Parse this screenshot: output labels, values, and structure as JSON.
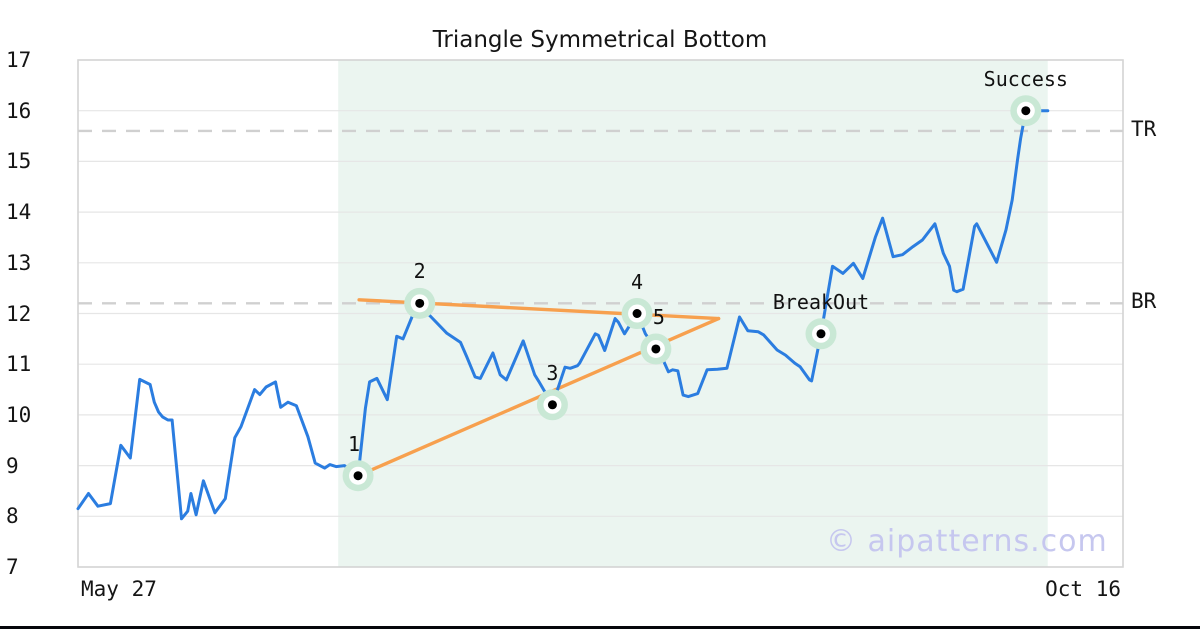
{
  "watermark": "© aipatterns.com",
  "chart_data": {
    "type": "line",
    "title": "Triangle Symmetrical Bottom",
    "xlabel": "",
    "ylabel": "",
    "x_tick_labels": [
      "May 27",
      "Oct 16"
    ],
    "y_ticks": [
      7,
      8,
      9,
      10,
      11,
      12,
      13,
      14,
      15,
      16,
      17
    ],
    "ylim": [
      7,
      17
    ],
    "grid": "horizontal",
    "legend": "none",
    "pattern_region_x_pct": [
      24.9,
      92.8
    ],
    "levels": [
      {
        "label": "TR",
        "value": 15.6
      },
      {
        "label": "BR",
        "value": 12.2
      }
    ],
    "trendlines": [
      {
        "name": "upper",
        "points": [
          [
            26.9,
            12.27
          ],
          [
            61.3,
            11.9
          ]
        ]
      },
      {
        "name": "lower",
        "points": [
          [
            26.8,
            8.8
          ],
          [
            61.3,
            11.9
          ]
        ]
      }
    ],
    "markers": [
      {
        "label": "1",
        "x_pct": 26.8,
        "y": 8.8,
        "dx": -4
      },
      {
        "label": "2",
        "x_pct": 32.7,
        "y": 12.2,
        "dx": 0
      },
      {
        "label": "3",
        "x_pct": 45.4,
        "y": 10.2,
        "dx": 0
      },
      {
        "label": "4",
        "x_pct": 53.5,
        "y": 12.0,
        "dx": 0
      },
      {
        "label": "5",
        "x_pct": 55.3,
        "y": 11.3,
        "dx": 3
      },
      {
        "label": "BreakOut",
        "x_pct": 71.1,
        "y": 11.6,
        "dx": 0
      },
      {
        "label": "Success",
        "x_pct": 90.7,
        "y": 16.0,
        "dx": 0
      }
    ],
    "series": [
      {
        "name": "price",
        "points": [
          [
            0,
            8.15
          ],
          [
            1,
            8.45
          ],
          [
            1.9,
            8.2
          ],
          [
            3.1,
            8.25
          ],
          [
            4.1,
            9.4
          ],
          [
            5,
            9.15
          ],
          [
            5.9,
            10.7
          ],
          [
            6.9,
            10.6
          ],
          [
            7.3,
            10.25
          ],
          [
            7.7,
            10.06
          ],
          [
            8.1,
            9.96
          ],
          [
            8.6,
            9.9
          ],
          [
            9,
            9.9
          ],
          [
            9.9,
            7.95
          ],
          [
            10.5,
            8.1
          ],
          [
            10.8,
            8.45
          ],
          [
            11.3,
            8.03
          ],
          [
            12,
            8.7
          ],
          [
            13.1,
            8.07
          ],
          [
            14.1,
            8.35
          ],
          [
            15,
            9.55
          ],
          [
            15.6,
            9.77
          ],
          [
            16.9,
            10.5
          ],
          [
            17.4,
            10.4
          ],
          [
            18,
            10.55
          ],
          [
            18.9,
            10.65
          ],
          [
            19.4,
            10.15
          ],
          [
            20.1,
            10.25
          ],
          [
            20.9,
            10.18
          ],
          [
            22,
            9.57
          ],
          [
            22.7,
            9.05
          ],
          [
            23.6,
            8.95
          ],
          [
            24.1,
            9.02
          ],
          [
            24.7,
            8.98
          ],
          [
            25.5,
            9.0
          ],
          [
            26,
            8.93
          ],
          [
            26.8,
            8.8
          ],
          [
            27.5,
            10.13
          ],
          [
            27.9,
            10.65
          ],
          [
            28.6,
            10.72
          ],
          [
            29.6,
            10.3
          ],
          [
            30.5,
            11.55
          ],
          [
            31.1,
            11.5
          ],
          [
            32.1,
            12.0
          ],
          [
            32.7,
            12.2
          ],
          [
            33.2,
            12.05
          ],
          [
            33.7,
            11.95
          ],
          [
            35.3,
            11.61
          ],
          [
            36.6,
            11.43
          ],
          [
            37.2,
            11.15
          ],
          [
            38,
            10.75
          ],
          [
            38.5,
            10.72
          ],
          [
            39.7,
            11.22
          ],
          [
            40.4,
            10.79
          ],
          [
            41,
            10.69
          ],
          [
            42.6,
            11.46
          ],
          [
            43.7,
            10.79
          ],
          [
            44.1,
            10.66
          ],
          [
            45.4,
            10.2
          ],
          [
            46.6,
            10.94
          ],
          [
            47.1,
            10.92
          ],
          [
            47.8,
            10.97
          ],
          [
            48,
            11.02
          ],
          [
            49.5,
            11.6
          ],
          [
            49.8,
            11.57
          ],
          [
            50.4,
            11.27
          ],
          [
            51.4,
            11.9
          ],
          [
            51.7,
            11.83
          ],
          [
            52.3,
            11.6
          ],
          [
            53.5,
            12.0
          ],
          [
            54.3,
            11.6
          ],
          [
            55.3,
            11.3
          ],
          [
            56,
            11.08
          ],
          [
            56.5,
            10.85
          ],
          [
            56.9,
            10.89
          ],
          [
            57.4,
            10.87
          ],
          [
            57.9,
            10.39
          ],
          [
            58.4,
            10.36
          ],
          [
            59.3,
            10.42
          ],
          [
            60.2,
            10.89
          ],
          [
            61.2,
            10.9
          ],
          [
            62.1,
            10.92
          ],
          [
            63.3,
            11.93
          ],
          [
            64.1,
            11.66
          ],
          [
            65.1,
            11.64
          ],
          [
            65.6,
            11.58
          ],
          [
            66.9,
            11.28
          ],
          [
            67.7,
            11.18
          ],
          [
            68.6,
            11.02
          ],
          [
            69.1,
            10.95
          ],
          [
            70,
            10.69
          ],
          [
            70.2,
            10.67
          ],
          [
            71.1,
            11.6
          ],
          [
            72.2,
            12.93
          ],
          [
            73.2,
            12.79
          ],
          [
            74.2,
            12.99
          ],
          [
            75.1,
            12.69
          ],
          [
            76.3,
            13.5
          ],
          [
            77,
            13.88
          ],
          [
            78,
            13.12
          ],
          [
            78.9,
            13.16
          ],
          [
            79.9,
            13.32
          ],
          [
            80.8,
            13.45
          ],
          [
            82,
            13.77
          ],
          [
            82.8,
            13.19
          ],
          [
            83.4,
            12.93
          ],
          [
            83.8,
            12.46
          ],
          [
            84.1,
            12.43
          ],
          [
            84.7,
            12.48
          ],
          [
            85.8,
            13.72
          ],
          [
            86,
            13.77
          ],
          [
            87.3,
            13.25
          ],
          [
            87.9,
            13.01
          ],
          [
            88.8,
            13.65
          ],
          [
            89.4,
            14.24
          ],
          [
            89.9,
            15.03
          ],
          [
            90.2,
            15.45
          ],
          [
            90.7,
            16.0
          ],
          [
            92.8,
            16.0
          ]
        ]
      }
    ],
    "colors": {
      "price_line": "#2b7de0",
      "trendline": "#f7a04e",
      "marker_halo": "#c9e8d5",
      "marker_dot": "#000000",
      "pattern_region": "#ebf5f0",
      "level_dash": "#d0d0d0",
      "grid": "#e6e6e6",
      "plot_border": "#d4d4d4",
      "watermark": "#c6c7ef"
    }
  }
}
